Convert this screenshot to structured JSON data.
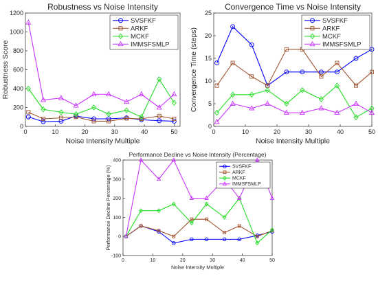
{
  "colors": {
    "SVSFKF": "#0000ff",
    "ARKF": "#a0522d",
    "MCKF": "#22dd22",
    "IMMSFSMLP": "#cc33ff"
  },
  "chart_data": [
    {
      "id": "robustness",
      "type": "line",
      "title": "Robustness vs Noise Intensity",
      "xlabel": "Noise Intensity Multiple",
      "ylabel": "Robustness Score",
      "xlim": [
        0,
        52
      ],
      "ylim": [
        0,
        1200
      ],
      "xticks": [
        0,
        10,
        20,
        30,
        40,
        50
      ],
      "yticks": [
        0,
        200,
        400,
        600,
        800,
        1000,
        1200
      ],
      "grid": false,
      "legend": "top-right",
      "x": [
        1,
        6,
        12,
        17,
        23,
        28,
        34,
        39,
        45,
        50
      ],
      "series": [
        {
          "name": "SVSFKF",
          "marker": "circle",
          "values": [
            100,
            50,
            55,
            110,
            80,
            80,
            90,
            70,
            60,
            55
          ]
        },
        {
          "name": "ARKF",
          "marker": "square",
          "values": [
            150,
            80,
            90,
            100,
            55,
            55,
            85,
            80,
            110,
            80
          ]
        },
        {
          "name": "MCKF",
          "marker": "diamond",
          "values": [
            400,
            180,
            150,
            130,
            200,
            130,
            170,
            100,
            500,
            250
          ]
        },
        {
          "name": "IMMSFSMLP",
          "marker": "triangle",
          "values": [
            1100,
            280,
            300,
            220,
            340,
            340,
            260,
            340,
            200,
            340
          ]
        }
      ]
    },
    {
      "id": "convergence",
      "type": "line",
      "title": "Convergence Time vs Noise Intensity",
      "xlabel": "Noise Intensity Multiple",
      "ylabel": "Convergence Time (steps)",
      "xlim": [
        0,
        50
      ],
      "ylim": [
        0,
        25
      ],
      "xticks": [
        0,
        10,
        20,
        30,
        40,
        50
      ],
      "yticks": [
        0,
        5,
        10,
        15,
        20,
        25
      ],
      "grid": false,
      "legend": "top-right",
      "x": [
        1,
        6,
        12,
        17,
        23,
        28,
        34,
        39,
        45,
        50
      ],
      "series": [
        {
          "name": "SVSFKF",
          "marker": "circle",
          "values": [
            14,
            22,
            18,
            9,
            12,
            12,
            12,
            12,
            15,
            17
          ]
        },
        {
          "name": "ARKF",
          "marker": "square",
          "values": [
            9,
            14,
            11,
            9,
            17,
            17,
            11,
            14,
            9,
            12
          ]
        },
        {
          "name": "MCKF",
          "marker": "diamond",
          "values": [
            3,
            7,
            7,
            8,
            5,
            8,
            6,
            9,
            2,
            4
          ]
        },
        {
          "name": "IMMSFSMLP",
          "marker": "triangle",
          "values": [
            1,
            5,
            4,
            5,
            3,
            3,
            4,
            3,
            5,
            3
          ]
        }
      ]
    },
    {
      "id": "decline",
      "type": "line",
      "title": "Performance Decline vs Noise Intensity (Percentage)",
      "xlabel": "Noise Intensity Multiple",
      "ylabel": "Performance Decline Percentage (%)",
      "xlim": [
        0,
        50
      ],
      "ylim": [
        -100,
        400
      ],
      "xticks": [
        0,
        10,
        20,
        30,
        40,
        50
      ],
      "yticks": [
        -100,
        0,
        100,
        200,
        300,
        400
      ],
      "grid": false,
      "legend": "top-right",
      "x": [
        1,
        6,
        12,
        17,
        23,
        28,
        34,
        39,
        45,
        50
      ],
      "series": [
        {
          "name": "SVSFKF",
          "marker": "circle",
          "values": [
            0,
            55,
            25,
            -35,
            -15,
            -15,
            -15,
            -15,
            5,
            25
          ]
        },
        {
          "name": "ARKF",
          "marker": "square",
          "values": [
            0,
            55,
            30,
            0,
            90,
            90,
            20,
            55,
            0,
            30
          ]
        },
        {
          "name": "MCKF",
          "marker": "diamond",
          "values": [
            0,
            135,
            135,
            170,
            70,
            170,
            100,
            200,
            -35,
            35
          ]
        },
        {
          "name": "IMMSFSMLP",
          "marker": "triangle",
          "values": [
            0,
            400,
            300,
            400,
            200,
            200,
            300,
            200,
            400,
            200
          ]
        }
      ]
    }
  ]
}
